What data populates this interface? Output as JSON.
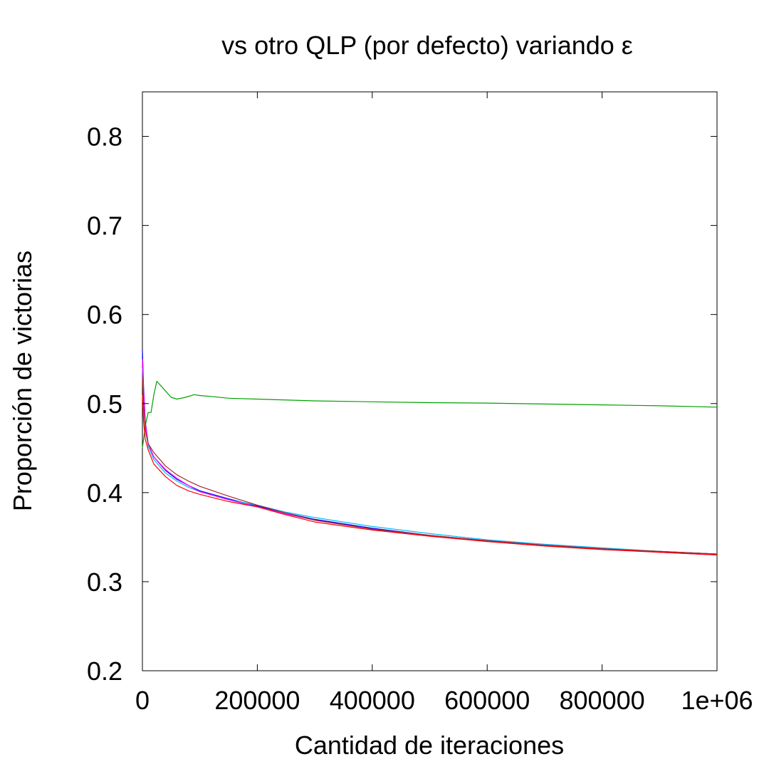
{
  "chart_data": {
    "type": "line",
    "title": "vs otro QLP (por defecto) variando ε",
    "xlabel": "Cantidad de iteraciones",
    "ylabel": "Proporción de victorias",
    "xlim": [
      0,
      1000000
    ],
    "ylim": [
      0.2,
      0.85
    ],
    "x_ticks": [
      0,
      200000,
      400000,
      600000,
      800000,
      1000000
    ],
    "x_tick_labels": [
      "0",
      "200000",
      "400000",
      "600000",
      "800000",
      "1e+06"
    ],
    "y_ticks": [
      0.2,
      0.3,
      0.4,
      0.5,
      0.6,
      0.7,
      0.8
    ],
    "y_tick_labels": [
      "0.2",
      "0.3",
      "0.4",
      "0.5",
      "0.6",
      "0.7",
      "0.8"
    ],
    "grid": false,
    "series": [
      {
        "color": "#00a000",
        "x": [
          0,
          5000,
          10000,
          15000,
          20000,
          25000,
          35000,
          50000,
          60000,
          75000,
          90000,
          100000,
          120000,
          150000,
          200000,
          300000,
          400000,
          500000,
          600000,
          700000,
          800000,
          900000,
          1000000
        ],
        "y": [
          0.45,
          0.475,
          0.49,
          0.49,
          0.51,
          0.525,
          0.518,
          0.507,
          0.505,
          0.507,
          0.51,
          0.509,
          0.508,
          0.506,
          0.505,
          0.503,
          0.502,
          0.501,
          0.5005,
          0.4995,
          0.4985,
          0.4975,
          0.496
        ]
      },
      {
        "color": "#0000ff",
        "x": [
          0,
          2000,
          5000,
          10000,
          20000,
          40000,
          60000,
          80000,
          100000,
          150000,
          200000,
          250000,
          300000,
          400000,
          500000,
          600000,
          700000,
          800000,
          900000,
          1000000
        ],
        "y": [
          0.56,
          0.52,
          0.48,
          0.455,
          0.44,
          0.425,
          0.415,
          0.408,
          0.402,
          0.393,
          0.385,
          0.377,
          0.37,
          0.36,
          0.352,
          0.346,
          0.341,
          0.337,
          0.334,
          0.331
        ]
      },
      {
        "color": "#00bfff",
        "x": [
          0,
          2000,
          5000,
          10000,
          20000,
          40000,
          60000,
          80000,
          100000,
          150000,
          200000,
          250000,
          300000,
          400000,
          500000,
          600000,
          700000,
          800000,
          900000,
          1000000
        ],
        "y": [
          0.54,
          0.51,
          0.475,
          0.452,
          0.437,
          0.422,
          0.413,
          0.406,
          0.401,
          0.392,
          0.386,
          0.378,
          0.372,
          0.362,
          0.354,
          0.347,
          0.342,
          0.338,
          0.334,
          0.331
        ]
      },
      {
        "color": "#ff00ff",
        "x": [
          0,
          2000,
          5000,
          10000,
          20000,
          40000,
          60000,
          80000,
          100000,
          150000,
          200000,
          250000,
          300000,
          400000,
          500000,
          600000,
          700000,
          800000,
          900000,
          1000000
        ],
        "y": [
          0.55,
          0.515,
          0.478,
          0.455,
          0.44,
          0.426,
          0.416,
          0.408,
          0.401,
          0.392,
          0.384,
          0.376,
          0.369,
          0.359,
          0.352,
          0.346,
          0.341,
          0.337,
          0.333,
          0.33
        ]
      },
      {
        "color": "#a52a2a",
        "x": [
          0,
          2000,
          5000,
          10000,
          20000,
          40000,
          60000,
          80000,
          100000,
          150000,
          200000,
          250000,
          300000,
          400000,
          500000,
          600000,
          700000,
          800000,
          900000,
          1000000
        ],
        "y": [
          0.53,
          0.5,
          0.47,
          0.455,
          0.445,
          0.43,
          0.42,
          0.413,
          0.407,
          0.396,
          0.386,
          0.377,
          0.369,
          0.359,
          0.352,
          0.346,
          0.341,
          0.337,
          0.334,
          0.331
        ]
      },
      {
        "color": "#ff0000",
        "x": [
          0,
          2000,
          5000,
          10000,
          20000,
          40000,
          60000,
          80000,
          100000,
          150000,
          200000,
          250000,
          300000,
          400000,
          500000,
          600000,
          700000,
          800000,
          900000,
          1000000
        ],
        "y": [
          0.51,
          0.48,
          0.46,
          0.448,
          0.432,
          0.418,
          0.408,
          0.402,
          0.398,
          0.39,
          0.384,
          0.375,
          0.367,
          0.358,
          0.351,
          0.345,
          0.34,
          0.336,
          0.333,
          0.33
        ]
      }
    ]
  }
}
